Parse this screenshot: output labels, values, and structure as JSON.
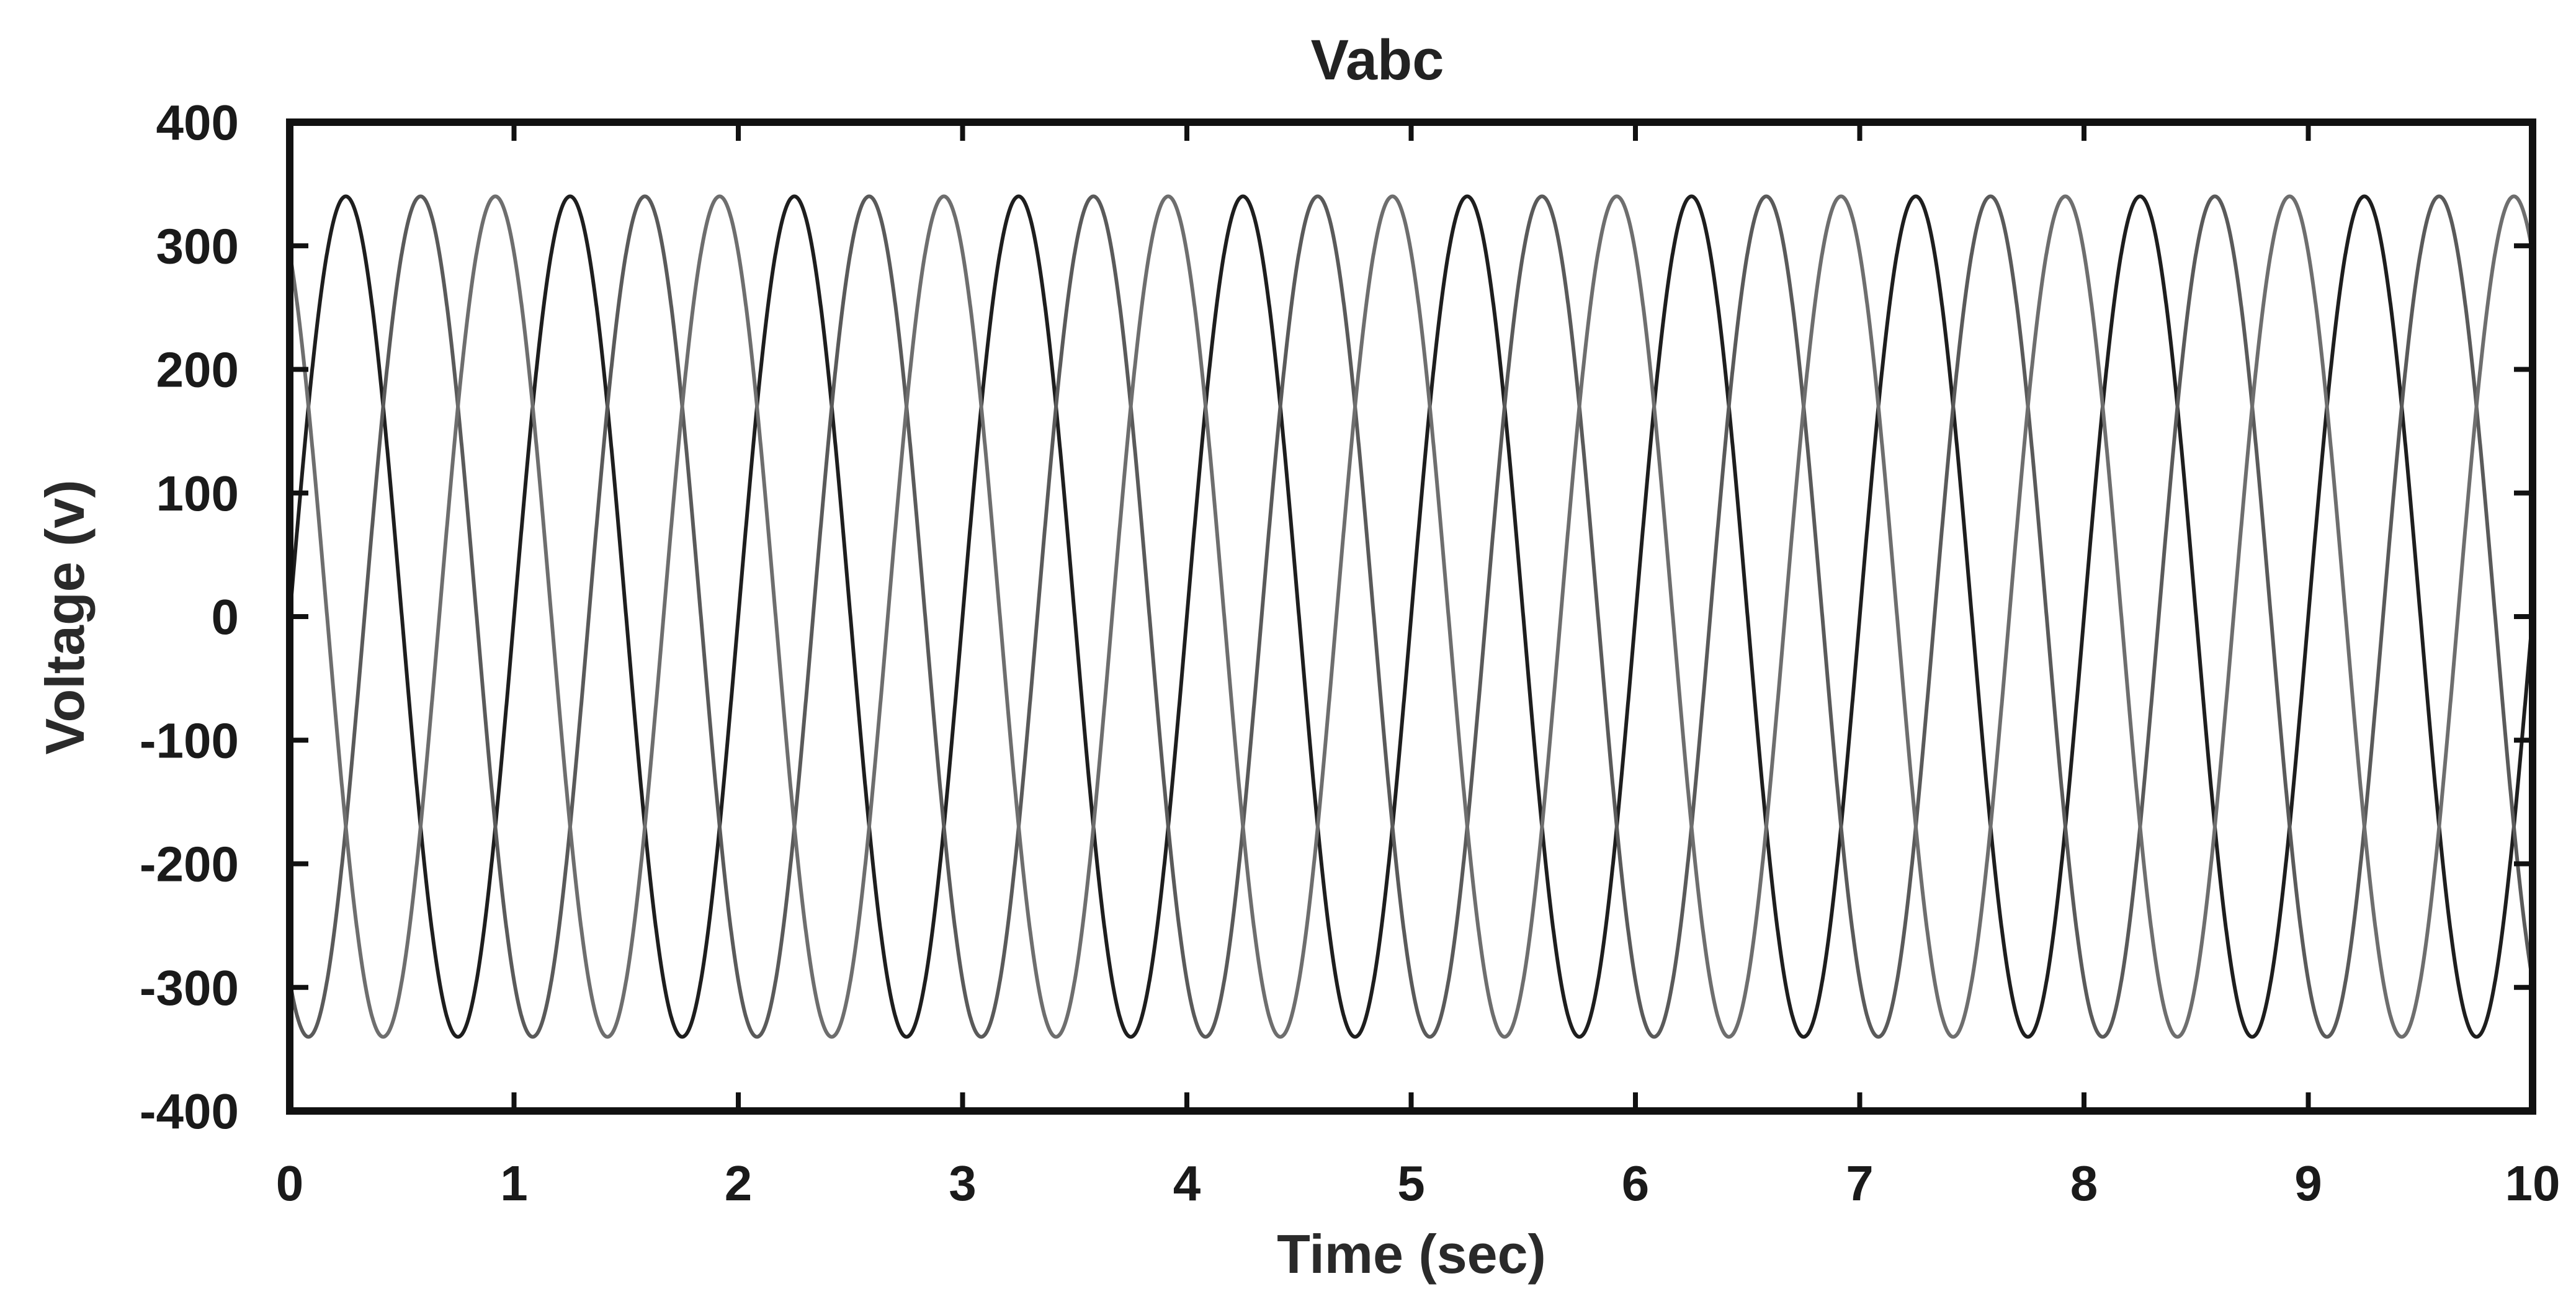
{
  "chart_data": {
    "type": "line",
    "title": "Vabc",
    "xlabel": "Time (sec)",
    "ylabel": "Voltage (v)",
    "xlim": [
      0,
      10
    ],
    "ylim": [
      -400,
      400
    ],
    "x_ticks": [
      "0",
      "1",
      "2",
      "3",
      "4",
      "5",
      "6",
      "7",
      "8",
      "9",
      "10"
    ],
    "y_ticks": [
      "400",
      "300",
      "200",
      "100",
      "0",
      "-100",
      "-200",
      "-300",
      "-400"
    ],
    "grid": false,
    "legend": "none",
    "amplitude": 340,
    "period_sec": 1.0,
    "series": [
      {
        "phase_deg": 0,
        "color": "#1e1e1e",
        "values_at_integer_seconds": [
          0,
          0,
          0,
          0,
          0,
          0,
          0,
          0,
          0,
          0,
          0
        ]
      },
      {
        "phase_deg": -120,
        "color": "#5a5a5a",
        "values_at_integer_seconds": [
          -294,
          -294,
          -294,
          -294,
          -294,
          -294,
          -294,
          -294,
          -294,
          -294,
          -294
        ]
      },
      {
        "phase_deg": 120,
        "color": "#6e6e6e",
        "values_at_integer_seconds": [
          294,
          294,
          294,
          294,
          294,
          294,
          294,
          294,
          294,
          294,
          294
        ]
      }
    ]
  }
}
